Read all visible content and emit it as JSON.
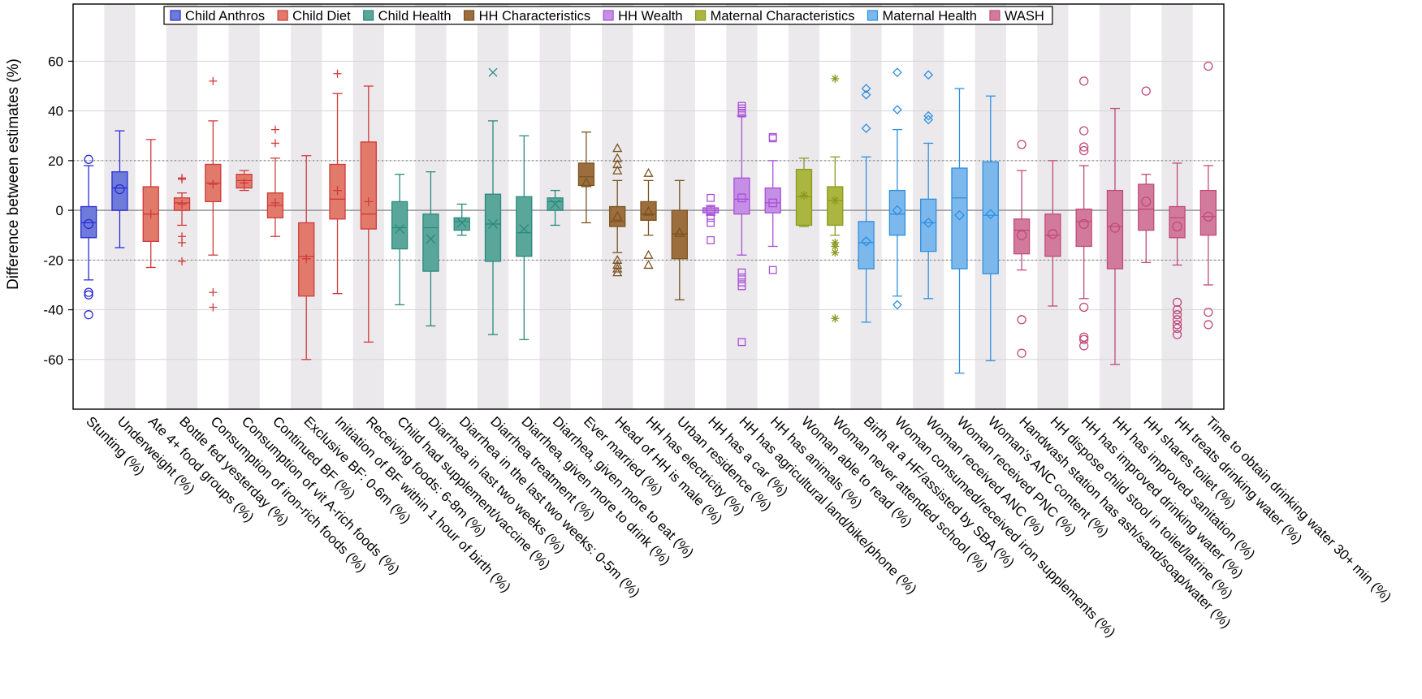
{
  "chart_data": {
    "type": "box",
    "ylabel": "Difference between estimates (%)",
    "ylim": [
      -80,
      83
    ],
    "yticks": [
      -60,
      -40,
      -20,
      0,
      20,
      40,
      60
    ],
    "reference_lines": [
      -20,
      20
    ],
    "legend_position": "top",
    "groups": [
      {
        "name": "Child Anthros",
        "color": "#2b2bd6",
        "fill": "#6f7bd8",
        "marker": "circle"
      },
      {
        "name": "Child Diet",
        "color": "#d03a3a",
        "fill": "#e27a6c",
        "marker": "plus"
      },
      {
        "name": "Child Health",
        "color": "#2a8a7c",
        "fill": "#5aa69a",
        "marker": "x"
      },
      {
        "name": "HH Characteristics",
        "color": "#7a5220",
        "fill": "#9c6e3e",
        "marker": "triangle"
      },
      {
        "name": "HH Wealth",
        "color": "#a84fd8",
        "fill": "#c48fe4",
        "marker": "square"
      },
      {
        "name": "Maternal Characteristics",
        "color": "#8a9a1e",
        "fill": "#aab640",
        "marker": "star"
      },
      {
        "name": "Maternal Health",
        "color": "#2f8fe0",
        "fill": "#7cb8ec",
        "marker": "diamond"
      },
      {
        "name": "WASH",
        "color": "#c04a7a",
        "fill": "#d27a9c",
        "marker": "circle"
      }
    ],
    "categories": [
      "Stunting (%)",
      "Underweight (%)",
      "Ate 4+ food groups (%)",
      "Bottle fed yesterday (%)",
      "Consumption of iron-rich foods (%)",
      "Consumption of vit A-rich foods (%)",
      "Continued BF (%)",
      "Exclusive BF: 0-6m (%)",
      "Initiation of BF within 1 hour of birth (%)",
      "Receiving foods: 6-8m (%)",
      "Child had supplement/vaccine (%)",
      "Diarrhea in last two weeks (%)",
      "Diarrhea in the last two weeks: 0-5m (%)",
      "Diarrhea treatment (%)",
      "Diarrhea, given more to drink (%)",
      "Diarrhea, given more to eat (%)",
      "Ever married (%)",
      "Head of HH is male (%)",
      "HH has electricity (%)",
      "Urban residence (%)",
      "HH has a car (%)",
      "HH has agricultural land/bike/phone (%)",
      "HH has animals (%)",
      "Woman able to read (%)",
      "Woman never attended school (%)",
      "Birth at a HF/assisted by SBA (%)",
      "Woman consumed/received iron supplements (%)",
      "Woman received ANC (%)",
      "Woman received PNC (%)",
      "Woman's ANC content (%)",
      "Handwash station has ash/sand/soap/water (%)",
      "HH dispose child stool in toilet/latrine (%)",
      "HH has improved drinking water (%)",
      "HH has improved sanitation (%)",
      "HH shares toilet (%)",
      "HH treats drinking water (%)",
      "Time to obtain drinking water 30+ min (%)"
    ],
    "boxes": [
      {
        "group": 0,
        "whisker_low": -28,
        "q1": -11,
        "median": -5,
        "q3": 1.5,
        "whisker_high": 18,
        "mean": -5.5,
        "outliers": [
          20.5,
          -33,
          -34,
          -42
        ]
      },
      {
        "group": 0,
        "whisker_low": -15,
        "q1": 0,
        "median": 9,
        "q3": 15.5,
        "whisker_high": 32,
        "mean": 8.5,
        "outliers": []
      },
      {
        "group": 1,
        "whisker_low": -23,
        "q1": -12.5,
        "median": -1.5,
        "q3": 9.5,
        "whisker_high": 28.5,
        "mean": -1.5,
        "outliers": []
      },
      {
        "group": 1,
        "whisker_low": -6,
        "q1": 0,
        "median": 3,
        "q3": 5,
        "whisker_high": 7,
        "mean": 2.5,
        "outliers": [
          12.5,
          13,
          -10.5,
          -13,
          -20.5
        ]
      },
      {
        "group": 1,
        "whisker_low": -18,
        "q1": 3.5,
        "median": 11,
        "q3": 18.5,
        "whisker_high": 36,
        "mean": 10.5,
        "outliers": [
          52,
          -33,
          -39
        ]
      },
      {
        "group": 1,
        "whisker_low": 8,
        "q1": 9,
        "median": 12,
        "q3": 14.5,
        "whisker_high": 16,
        "mean": 11,
        "outliers": []
      },
      {
        "group": 1,
        "whisker_low": -10.5,
        "q1": -3,
        "median": 2,
        "q3": 7,
        "whisker_high": 21,
        "mean": 3,
        "outliers": [
          27,
          32.5
        ]
      },
      {
        "group": 1,
        "whisker_low": -60,
        "q1": -34.5,
        "median": -18.5,
        "q3": -5,
        "whisker_high": 22,
        "mean": -19.5,
        "outliers": []
      },
      {
        "group": 1,
        "whisker_low": -33.5,
        "q1": -3.5,
        "median": 4.5,
        "q3": 18.5,
        "whisker_high": 47,
        "mean": 8,
        "outliers": [
          55
        ]
      },
      {
        "group": 1,
        "whisker_low": -53,
        "q1": -7.5,
        "median": -1.5,
        "q3": 27.5,
        "whisker_high": 50,
        "mean": 3.5,
        "outliers": []
      },
      {
        "group": 2,
        "whisker_low": -38,
        "q1": -15.5,
        "median": -7,
        "q3": 3.5,
        "whisker_high": 14.5,
        "mean": -7.5,
        "outliers": []
      },
      {
        "group": 2,
        "whisker_low": -46.5,
        "q1": -24.5,
        "median": -7,
        "q3": -1.5,
        "whisker_high": 15.5,
        "mean": -11.5,
        "outliers": []
      },
      {
        "group": 2,
        "whisker_low": -10,
        "q1": -8,
        "median": -4.5,
        "q3": -3,
        "whisker_high": 2.5,
        "mean": -5,
        "outliers": []
      },
      {
        "group": 2,
        "whisker_low": -50,
        "q1": -20.5,
        "median": -5.5,
        "q3": 6.5,
        "whisker_high": 36,
        "mean": -5.5,
        "outliers": [
          55.5
        ]
      },
      {
        "group": 2,
        "whisker_low": -52,
        "q1": -18.5,
        "median": -9,
        "q3": 5.5,
        "whisker_high": 30,
        "mean": -7.5,
        "outliers": []
      },
      {
        "group": 2,
        "whisker_low": -6,
        "q1": 0,
        "median": 3.5,
        "q3": 5,
        "whisker_high": 8,
        "mean": 2.5,
        "outliers": []
      },
      {
        "group": 3,
        "whisker_low": -5,
        "q1": 10,
        "median": 13.5,
        "q3": 19,
        "whisker_high": 31.5,
        "mean": 11,
        "outliers": []
      },
      {
        "group": 3,
        "whisker_low": -17,
        "q1": -6.5,
        "median": -4.5,
        "q3": 1.5,
        "whisker_high": 12,
        "mean": -2.5,
        "outliers": [
          16,
          18.5,
          21,
          25,
          -20,
          -22,
          -23.5,
          -25
        ]
      },
      {
        "group": 3,
        "whisker_low": -10,
        "q1": -4,
        "median": -1.5,
        "q3": 3.5,
        "whisker_high": 12,
        "mean": -0.5,
        "outliers": [
          15,
          -18,
          -22
        ]
      },
      {
        "group": 3,
        "whisker_low": -36,
        "q1": -19.5,
        "median": -9.5,
        "q3": 0,
        "whisker_high": 12,
        "mean": -9,
        "outliers": []
      },
      {
        "group": 4,
        "whisker_low": -2,
        "q1": -1,
        "median": 0,
        "q3": 1,
        "whisker_high": 2,
        "mean": 0,
        "outliers": [
          5,
          -3,
          -5,
          -12
        ]
      },
      {
        "group": 4,
        "whisker_low": -18,
        "q1": -1.5,
        "median": 4.5,
        "q3": 13,
        "whisker_high": 38,
        "mean": 5,
        "outliers": [
          39,
          40,
          41,
          42,
          -25,
          -27,
          -29,
          -30.5,
          -53
        ]
      },
      {
        "group": 4,
        "whisker_low": -14.5,
        "q1": -1,
        "median": 3,
        "q3": 9,
        "whisker_high": 20,
        "mean": 3,
        "outliers": [
          29,
          29.5,
          -24
        ]
      },
      {
        "group": 5,
        "whisker_low": -6.5,
        "q1": -6,
        "median": 5.5,
        "q3": 16.5,
        "whisker_high": 21,
        "mean": 6,
        "outliers": []
      },
      {
        "group": 5,
        "whisker_low": -10,
        "q1": -6,
        "median": 4,
        "q3": 9.5,
        "whisker_high": 21.5,
        "mean": 4,
        "outliers": [
          53,
          -13,
          -14.5,
          -17,
          -43.5
        ]
      },
      {
        "group": 6,
        "whisker_low": -45,
        "q1": -23.5,
        "median": -13,
        "q3": -4.5,
        "whisker_high": 21.5,
        "mean": -12.5,
        "outliers": [
          33,
          46.5,
          49
        ]
      },
      {
        "group": 6,
        "whisker_low": -34.5,
        "q1": -10,
        "median": -1.5,
        "q3": 8,
        "whisker_high": 32.5,
        "mean": 0,
        "outliers": [
          40.5,
          55.5,
          -38
        ]
      },
      {
        "group": 6,
        "whisker_low": -35.5,
        "q1": -16.5,
        "median": -5,
        "q3": 4.5,
        "whisker_high": 27,
        "mean": -5,
        "outliers": [
          36.5,
          38,
          54.5
        ]
      },
      {
        "group": 6,
        "whisker_low": -65.5,
        "q1": -23.5,
        "median": 5,
        "q3": 17,
        "whisker_high": 49,
        "mean": -2,
        "outliers": []
      },
      {
        "group": 6,
        "whisker_low": -60.5,
        "q1": -25.5,
        "median": -2,
        "q3": 19.5,
        "whisker_high": 46,
        "mean": -1.5,
        "outliers": []
      },
      {
        "group": 7,
        "whisker_low": -24,
        "q1": -17.5,
        "median": -8,
        "q3": -3.5,
        "whisker_high": 16,
        "mean": -10,
        "outliers": [
          26.5,
          -44,
          -57.5
        ]
      },
      {
        "group": 7,
        "whisker_low": -38.5,
        "q1": -18.5,
        "median": -10,
        "q3": -1.5,
        "whisker_high": 20,
        "mean": -9.5,
        "outliers": []
      },
      {
        "group": 7,
        "whisker_low": -35.5,
        "q1": -14.5,
        "median": -4.5,
        "q3": 0.5,
        "whisker_high": 18,
        "mean": -5.5,
        "outliers": [
          24,
          25.5,
          32,
          52,
          -39,
          -51,
          -52,
          -54.5
        ]
      },
      {
        "group": 7,
        "whisker_low": -62,
        "q1": -23.5,
        "median": -6.5,
        "q3": 8,
        "whisker_high": 41,
        "mean": -7,
        "outliers": []
      },
      {
        "group": 7,
        "whisker_low": -21,
        "q1": -8,
        "median": 0.5,
        "q3": 10.5,
        "whisker_high": 14.5,
        "mean": 3.5,
        "outliers": [
          48
        ]
      },
      {
        "group": 7,
        "whisker_low": -22,
        "q1": -11,
        "median": -3,
        "q3": 1.5,
        "whisker_high": 19,
        "mean": -6.5,
        "outliers": [
          -37,
          -40,
          -42,
          -44,
          -46,
          -47.5,
          -50
        ]
      },
      {
        "group": 7,
        "whisker_low": -30,
        "q1": -10,
        "median": -2.5,
        "q3": 8,
        "whisker_high": 18,
        "mean": -2.5,
        "outliers": [
          58,
          -41,
          -46
        ]
      }
    ]
  }
}
